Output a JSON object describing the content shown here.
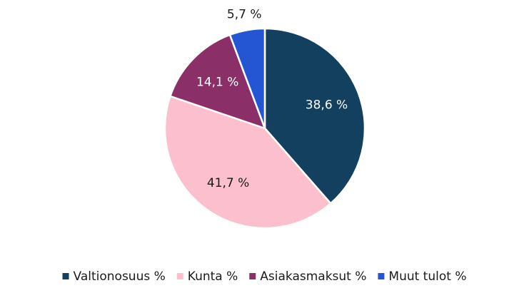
{
  "chart_data": {
    "type": "pie",
    "categories": [
      "Valtionosuus %",
      "Kunta %",
      "Asiakasmaksut %",
      "Muut tulot %"
    ],
    "values": [
      38.6,
      41.7,
      14.1,
      5.7
    ],
    "value_labels": [
      "38,6 %",
      "41,7 %",
      "14,1 %",
      "5,7 %"
    ],
    "colors": [
      "#13405f",
      "#fbbfcd",
      "#8a2f67",
      "#2456d4"
    ],
    "legend": "bottom"
  }
}
